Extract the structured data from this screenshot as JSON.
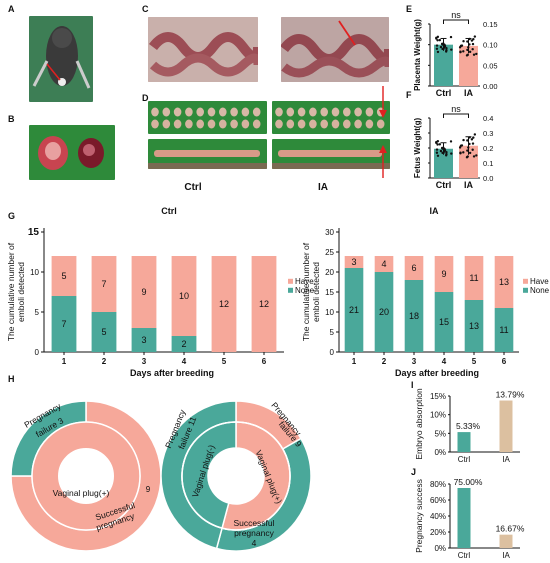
{
  "panel_letters": [
    "A",
    "B",
    "C",
    "D",
    "E",
    "F",
    "G",
    "H",
    "I",
    "J"
  ],
  "photo_labels": {
    "ctrl": "Ctrl",
    "ia": "IA"
  },
  "colors": {
    "teal": "#4aa89a",
    "salmon": "#f6a89a",
    "tan": "#dcc0a0",
    "green_bg": "#2e8a3a",
    "red_arrow": "#e02020"
  },
  "chart_data": [
    {
      "id": "E",
      "type": "bar",
      "ylabel": "Placenta Weight(g)",
      "categories": [
        "Ctrl",
        "IA"
      ],
      "values": [
        0.1,
        0.097
      ],
      "error": [
        0.015,
        0.018
      ],
      "ylim": [
        0,
        0.15
      ],
      "yticks": [
        "0.00",
        "0.05",
        "0.10",
        "0.15"
      ],
      "annotation": "ns"
    },
    {
      "id": "F",
      "type": "bar",
      "ylabel": "Fetus Weight(g)",
      "categories": [
        "Ctrl",
        "IA"
      ],
      "values": [
        0.195,
        0.215
      ],
      "error": [
        0.04,
        0.06
      ],
      "ylim": [
        0,
        0.4
      ],
      "yticks": [
        "0.0",
        "0.1",
        "0.2",
        "0.3",
        "0.4"
      ],
      "annotation": "ns"
    },
    {
      "id": "G-ctrl",
      "type": "bar",
      "stacked": true,
      "title": "Ctrl",
      "ylabel": "The cumulative number of emboli detected",
      "xlabel": "Days after breeding",
      "categories": [
        "1",
        "2",
        "3",
        "4",
        "5",
        "6"
      ],
      "series": [
        {
          "name": "None",
          "values": [
            7,
            5,
            3,
            2,
            0,
            0
          ]
        },
        {
          "name": "Have",
          "values": [
            5,
            7,
            9,
            10,
            12,
            12
          ]
        }
      ],
      "ylim": [
        0,
        15
      ],
      "yticks": [
        "0",
        "5",
        "10",
        "15"
      ],
      "legend": "right"
    },
    {
      "id": "G-ia",
      "type": "bar",
      "stacked": true,
      "title": "IA",
      "ylabel": "The cumulative number of emboli detected",
      "xlabel": "Days after breeding",
      "categories": [
        "1",
        "2",
        "3",
        "4",
        "5",
        "6"
      ],
      "series": [
        {
          "name": "None",
          "values": [
            21,
            20,
            18,
            15,
            13,
            11
          ]
        },
        {
          "name": "Have",
          "values": [
            3,
            4,
            6,
            9,
            11,
            13
          ]
        }
      ],
      "ylim": [
        0,
        30
      ],
      "yticks": [
        "0",
        "5",
        "10",
        "15",
        "20",
        "25",
        "30"
      ],
      "legend": "right"
    },
    {
      "id": "H-ctrl",
      "type": "pie",
      "style": "double-donut",
      "inner": [
        {
          "label": "Vaginal plug(+)",
          "value": 12
        }
      ],
      "outer": [
        {
          "label": "Successful pregnancy",
          "value": 9
        },
        {
          "label": "Pregnancy failure",
          "value": 3
        }
      ]
    },
    {
      "id": "H-ia",
      "type": "pie",
      "style": "double-donut",
      "inner": [
        {
          "label": "Vaginal plug(+)",
          "value": 13
        },
        {
          "label": "Vaginal plug(-)",
          "value": 11
        }
      ],
      "outer": [
        {
          "label": "Successful pregnancy",
          "value": 4
        },
        {
          "label": "Pregnancy failure",
          "value": 9
        },
        {
          "label": "Pregnancy failure",
          "value": 11
        }
      ]
    },
    {
      "id": "I",
      "type": "bar",
      "ylabel": "Embryo absorption",
      "categories": [
        "Ctrl",
        "IA"
      ],
      "values": [
        5.33,
        13.79
      ],
      "data_labels": [
        "5.33%",
        "13.79%"
      ],
      "ylim": [
        0,
        15
      ],
      "yticks": [
        "0%",
        "5%",
        "10%",
        "15%"
      ]
    },
    {
      "id": "J",
      "type": "bar",
      "ylabel": "Pregnancy success",
      "categories": [
        "Ctrl",
        "IA"
      ],
      "values": [
        75.0,
        16.67
      ],
      "data_labels": [
        "75.00%",
        "16.67%"
      ],
      "ylim": [
        0,
        80
      ],
      "yticks": [
        "0%",
        "20%",
        "40%",
        "60%",
        "80%"
      ]
    }
  ]
}
